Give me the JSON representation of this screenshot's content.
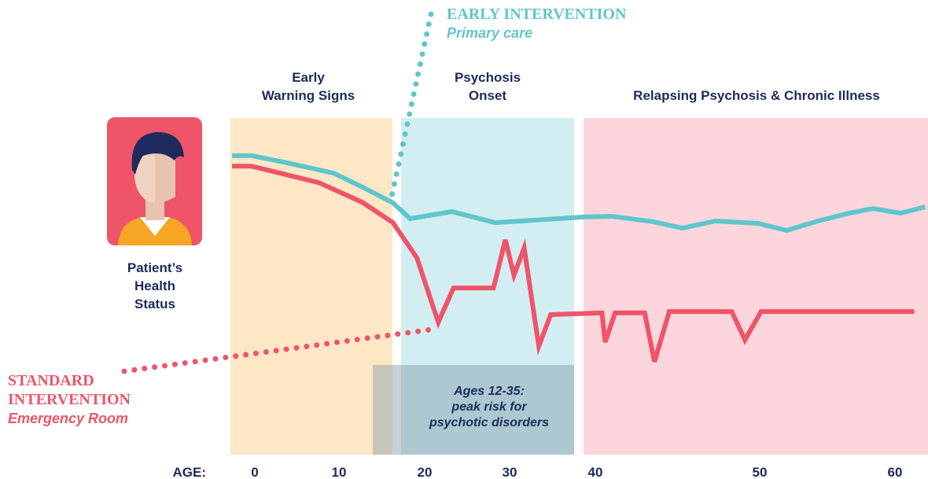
{
  "chart_data": {
    "type": "line",
    "y_label": [
      "Patient’s",
      "Health",
      "Status"
    ],
    "x_label": "AGE:",
    "phases": [
      [
        "Early",
        "Warning Signs"
      ],
      [
        "Psychosis",
        "Onset"
      ],
      [
        "Relapsing Psychosis & Chronic Illness"
      ]
    ],
    "note": [
      "Ages 12-35:",
      "peak risk for",
      "psychotic disorders"
    ],
    "series": [
      {
        "name": "EARLY INTERVENTION",
        "label": "Primary care",
        "color": "#5fc6cc",
        "x": [
          -2.7,
          -0.4,
          3.8,
          9.4,
          12.8,
          16.3,
          18.3,
          23.2,
          28.3,
          38.9,
          41.0,
          43.5,
          45.3,
          47.3,
          49.9,
          52.0,
          54.3,
          56.6,
          58.4,
          60.4,
          62.2
        ],
        "values": [
          88.8,
          88.8,
          86.7,
          83.6,
          79.4,
          74.8,
          70.1,
          72.2,
          68.9,
          70.6,
          70.8,
          69.2,
          67.3,
          69.4,
          68.7,
          66.6,
          69.4,
          71.7,
          73.1,
          71.7,
          73.6
        ]
      },
      {
        "name": "STANDARD INTERVENTION",
        "label": "Emergency Room",
        "color": "#ef5469",
        "x": [
          -2.7,
          -0.4,
          7.6,
          12.7,
          16.3,
          19.1,
          21.6,
          23.4,
          28.1,
          29.5,
          30.5,
          31.7,
          33.4,
          34.8,
          40.4,
          40.6,
          41.2,
          43.0,
          43.6,
          44.5,
          48.3,
          49.1,
          50.1,
          61.4
        ],
        "values": [
          85.7,
          85.7,
          80.8,
          75.0,
          68.9,
          58.4,
          39.3,
          49.5,
          49.5,
          63.8,
          53.3,
          61.4,
          32.2,
          41.6,
          42.1,
          33.4,
          42.1,
          42.1,
          27.6,
          42.5,
          42.5,
          34.1,
          42.5,
          42.5
        ]
      }
    ],
    "xlim": [
      -2.9,
      62.4
    ],
    "xticks": [
      0,
      10,
      20,
      30,
      40,
      50,
      60
    ],
    "ylim": [
      0,
      100
    ]
  }
}
